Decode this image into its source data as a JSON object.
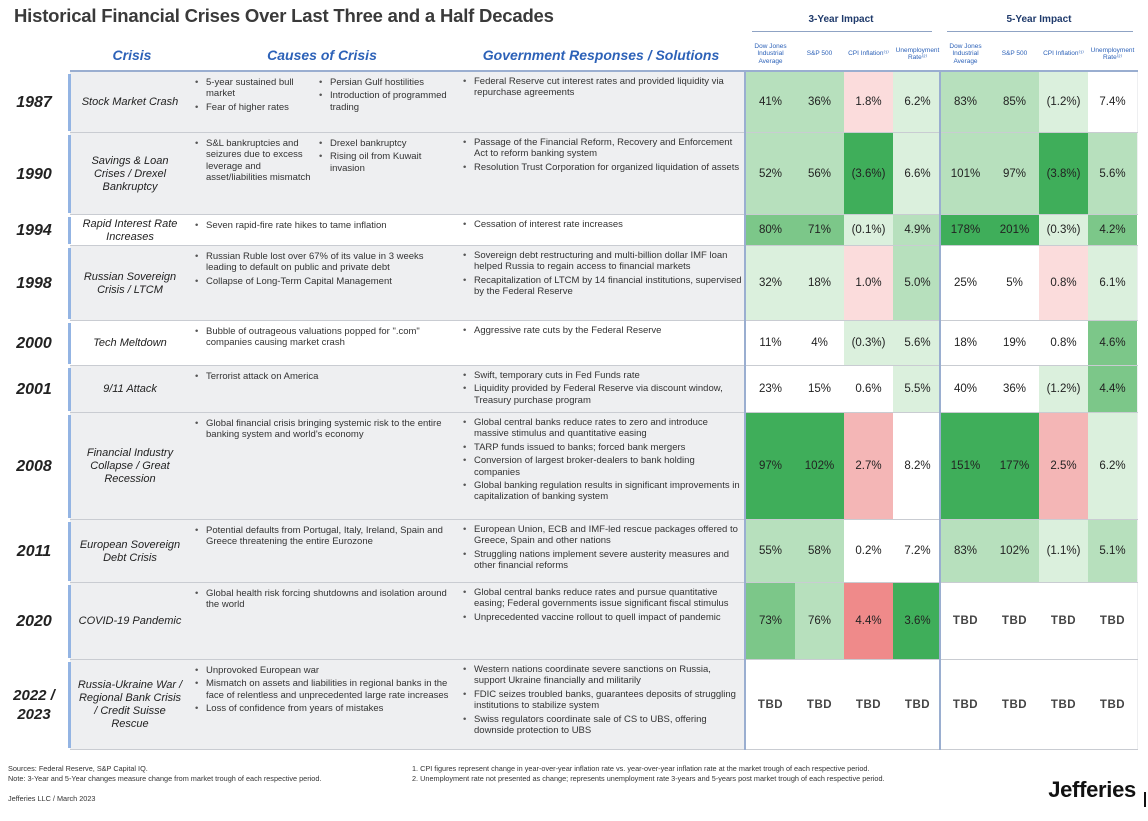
{
  "title": "Historical Financial Crises Over Last Three and a Half Decades",
  "groups": {
    "three_year": "3-Year Impact",
    "five_year": "5-Year Impact"
  },
  "headers": {
    "crisis": "Crisis",
    "causes": "Causes of Crisis",
    "responses": "Government Responses / Solutions",
    "dow": "Dow Jones Industrial Average",
    "sp": "S&P 500",
    "cpi": "CPI Inflation⁽¹⁾",
    "unemp": "Unemployment Rate⁽²⁾"
  },
  "colors": {
    "green_dark": "#3fae5a",
    "green_mid": "#7cc789",
    "green_light": "#b7e0bd",
    "green_pale": "#dbf0dd",
    "red_dark": "#ef8a8a",
    "red_mid": "#f4b6b6",
    "red_light": "#fbdcdc",
    "accent": "#2d62b8"
  },
  "rows": [
    {
      "year": "1987",
      "name": "Stock Market Crash",
      "shade": true,
      "causes_left": [
        "5-year sustained bull market",
        "Fear of higher rates"
      ],
      "causes_right": [
        "Persian Gulf hostilities",
        "Introduction of programmed trading"
      ],
      "responses": [
        "Federal Reserve cut interest rates and provided liquidity via repurchase agreements"
      ],
      "three": [
        {
          "v": "41%",
          "c": "green_light"
        },
        {
          "v": "36%",
          "c": "green_light"
        },
        {
          "v": "1.8%",
          "c": "red_light"
        },
        {
          "v": "6.2%",
          "c": "green_pale"
        }
      ],
      "five": [
        {
          "v": "83%",
          "c": "green_light"
        },
        {
          "v": "85%",
          "c": "green_light"
        },
        {
          "v": "(1.2%)",
          "c": "green_pale"
        },
        {
          "v": "7.4%",
          "c": "none"
        }
      ]
    },
    {
      "year": "1990",
      "name": "Savings & Loan Crises / Drexel Bankruptcy",
      "shade": true,
      "causes_left": [
        "S&L bankruptcies and seizures due to excess leverage and asset/liabilities mismatch"
      ],
      "causes_right": [
        "Drexel bankruptcy",
        "Rising oil from Kuwait invasion"
      ],
      "responses": [
        "Passage of the Financial Reform, Recovery and Enforcement Act to reform banking system",
        "Resolution Trust Corporation for organized liquidation of assets"
      ],
      "three": [
        {
          "v": "52%",
          "c": "green_light"
        },
        {
          "v": "56%",
          "c": "green_light"
        },
        {
          "v": "(3.6%)",
          "c": "green_dark"
        },
        {
          "v": "6.6%",
          "c": "green_pale"
        }
      ],
      "five": [
        {
          "v": "101%",
          "c": "green_light"
        },
        {
          "v": "97%",
          "c": "green_light"
        },
        {
          "v": "(3.8%)",
          "c": "green_dark"
        },
        {
          "v": "5.6%",
          "c": "green_light"
        }
      ]
    },
    {
      "year": "1994",
      "name": "Rapid Interest Rate Increases",
      "shade": false,
      "causes_left": [
        "Seven rapid-fire rate hikes to tame inflation"
      ],
      "causes_right": [],
      "responses": [
        "Cessation of interest rate increases"
      ],
      "three": [
        {
          "v": "80%",
          "c": "green_mid"
        },
        {
          "v": "71%",
          "c": "green_mid"
        },
        {
          "v": "(0.1%)",
          "c": "green_pale"
        },
        {
          "v": "4.9%",
          "c": "green_light"
        }
      ],
      "five": [
        {
          "v": "178%",
          "c": "green_dark"
        },
        {
          "v": "201%",
          "c": "green_dark"
        },
        {
          "v": "(0.3%)",
          "c": "green_pale"
        },
        {
          "v": "4.2%",
          "c": "green_mid"
        }
      ]
    },
    {
      "year": "1998",
      "name": "Russian Sovereign Crisis / LTCM",
      "shade": true,
      "causes_left": [
        "Russian Ruble lost over 67% of its value in 3 weeks leading to default on public and private debt",
        "Collapse of Long-Term Capital Management"
      ],
      "causes_right": [],
      "responses": [
        "Sovereign debt restructuring and multi-billion dollar IMF loan helped Russia to regain access to financial markets",
        "Recapitalization of LTCM by 14 financial institutions, supervised by the Federal Reserve"
      ],
      "three": [
        {
          "v": "32%",
          "c": "green_pale"
        },
        {
          "v": "18%",
          "c": "green_pale"
        },
        {
          "v": "1.0%",
          "c": "red_light"
        },
        {
          "v": "5.0%",
          "c": "green_light"
        }
      ],
      "five": [
        {
          "v": "25%",
          "c": "none"
        },
        {
          "v": "5%",
          "c": "none"
        },
        {
          "v": "0.8%",
          "c": "red_light"
        },
        {
          "v": "6.1%",
          "c": "green_pale"
        }
      ]
    },
    {
      "year": "2000",
      "name": "Tech Meltdown",
      "shade": false,
      "causes_left": [
        "Bubble of outrageous valuations popped for \".com\" companies causing market crash"
      ],
      "causes_right": [],
      "responses": [
        "Aggressive rate cuts by the Federal Reserve"
      ],
      "three": [
        {
          "v": "11%",
          "c": "none"
        },
        {
          "v": "4%",
          "c": "none"
        },
        {
          "v": "(0.3%)",
          "c": "green_pale"
        },
        {
          "v": "5.6%",
          "c": "green_pale"
        }
      ],
      "five": [
        {
          "v": "18%",
          "c": "none"
        },
        {
          "v": "19%",
          "c": "none"
        },
        {
          "v": "0.8%",
          "c": "none"
        },
        {
          "v": "4.6%",
          "c": "green_mid"
        }
      ]
    },
    {
      "year": "2001",
      "name": "9/11 Attack",
      "shade": true,
      "causes_left": [
        "Terrorist attack on America"
      ],
      "causes_right": [],
      "responses": [
        "Swift, temporary cuts in Fed Funds rate",
        "Liquidity provided by Federal Reserve via discount window, Treasury purchase program"
      ],
      "three": [
        {
          "v": "23%",
          "c": "none"
        },
        {
          "v": "15%",
          "c": "none"
        },
        {
          "v": "0.6%",
          "c": "none"
        },
        {
          "v": "5.5%",
          "c": "green_pale"
        }
      ],
      "five": [
        {
          "v": "40%",
          "c": "none"
        },
        {
          "v": "36%",
          "c": "none"
        },
        {
          "v": "(1.2%)",
          "c": "green_pale"
        },
        {
          "v": "4.4%",
          "c": "green_mid"
        }
      ]
    },
    {
      "year": "2008",
      "name": "Financial Industry Collapse / Great Recession",
      "shade": true,
      "causes_left": [
        "Global financial crisis bringing systemic risk to the entire banking system and world's economy"
      ],
      "causes_right": [],
      "responses": [
        "Global central banks reduce rates to zero and introduce massive stimulus and quantitative easing",
        "TARP funds issued to banks; forced bank mergers",
        "Conversion of largest broker-dealers to bank holding companies",
        "Global banking regulation results in significant improvements in capitalization of banking system"
      ],
      "three": [
        {
          "v": "97%",
          "c": "green_dark"
        },
        {
          "v": "102%",
          "c": "green_dark"
        },
        {
          "v": "2.7%",
          "c": "red_mid"
        },
        {
          "v": "8.2%",
          "c": "none"
        }
      ],
      "five": [
        {
          "v": "151%",
          "c": "green_dark"
        },
        {
          "v": "177%",
          "c": "green_dark"
        },
        {
          "v": "2.5%",
          "c": "red_mid"
        },
        {
          "v": "6.2%",
          "c": "green_pale"
        }
      ]
    },
    {
      "year": "2011",
      "name": "European Sovereign Debt Crisis",
      "shade": true,
      "causes_left": [
        "Potential defaults from Portugal, Italy, Ireland, Spain and Greece threatening the entire Eurozone"
      ],
      "causes_right": [],
      "responses": [
        "European Union, ECB and IMF-led rescue packages offered to Greece, Spain and other nations",
        "Struggling nations implement severe austerity measures and other financial reforms"
      ],
      "three": [
        {
          "v": "55%",
          "c": "green_light"
        },
        {
          "v": "58%",
          "c": "green_light"
        },
        {
          "v": "0.2%",
          "c": "none"
        },
        {
          "v": "7.2%",
          "c": "none"
        }
      ],
      "five": [
        {
          "v": "83%",
          "c": "green_light"
        },
        {
          "v": "102%",
          "c": "green_light"
        },
        {
          "v": "(1.1%)",
          "c": "green_pale"
        },
        {
          "v": "5.1%",
          "c": "green_light"
        }
      ]
    },
    {
      "year": "2020",
      "name": "COVID-19 Pandemic",
      "shade": true,
      "causes_left": [
        "Global health risk forcing shutdowns and isolation around the world"
      ],
      "causes_right": [],
      "responses": [
        "Global central banks reduce rates and pursue quantitative easing; Federal governments issue significant fiscal stimulus",
        "Unprecedented vaccine rollout to quell impact of pandemic"
      ],
      "three": [
        {
          "v": "73%",
          "c": "green_mid"
        },
        {
          "v": "76%",
          "c": "green_light"
        },
        {
          "v": "4.4%",
          "c": "red_dark"
        },
        {
          "v": "3.6%",
          "c": "green_dark"
        }
      ],
      "five": [
        {
          "v": "TBD",
          "c": "tbd"
        },
        {
          "v": "TBD",
          "c": "tbd"
        },
        {
          "v": "TBD",
          "c": "tbd"
        },
        {
          "v": "TBD",
          "c": "tbd"
        }
      ]
    },
    {
      "year": "2022 / 2023",
      "name": "Russia-Ukraine War / Regional Bank Crisis / Credit Suisse Rescue",
      "shade": true,
      "causes_left": [
        "Unprovoked European war",
        "Mismatch on assets and liabilities in regional banks in the face of relentless and unprecedented large rate increases",
        "Loss of confidence from years of mistakes"
      ],
      "causes_right": [],
      "responses": [
        "Western nations coordinate severe sanctions on Russia, support Ukraine financially and militarily",
        "FDIC seizes troubled banks, guarantees deposits of struggling institutions to stabilize system",
        "Swiss regulators coordinate sale of CS to UBS, offering downside protection to UBS"
      ],
      "three": [
        {
          "v": "TBD",
          "c": "tbd"
        },
        {
          "v": "TBD",
          "c": "tbd"
        },
        {
          "v": "TBD",
          "c": "tbd"
        },
        {
          "v": "TBD",
          "c": "tbd"
        }
      ],
      "five": [
        {
          "v": "TBD",
          "c": "tbd"
        },
        {
          "v": "TBD",
          "c": "tbd"
        },
        {
          "v": "TBD",
          "c": "tbd"
        },
        {
          "v": "TBD",
          "c": "tbd"
        }
      ]
    }
  ],
  "footer": {
    "sources": "Sources: Federal Reserve, S&P Capital IQ.",
    "note": "Note: 3-Year and 5-Year changes measure change from market trough of each respective period.",
    "credit": "Jefferies LLC / March 2023",
    "fn1": "1. CPI figures represent change in year-over-year inflation rate vs. year-over-year inflation rate at the market trough of each respective period.",
    "fn2": "2. Unemployment rate not presented as change; represents unemployment rate 3-years and 5-years post market trough of each respective period.",
    "brand": "Jefferies"
  }
}
